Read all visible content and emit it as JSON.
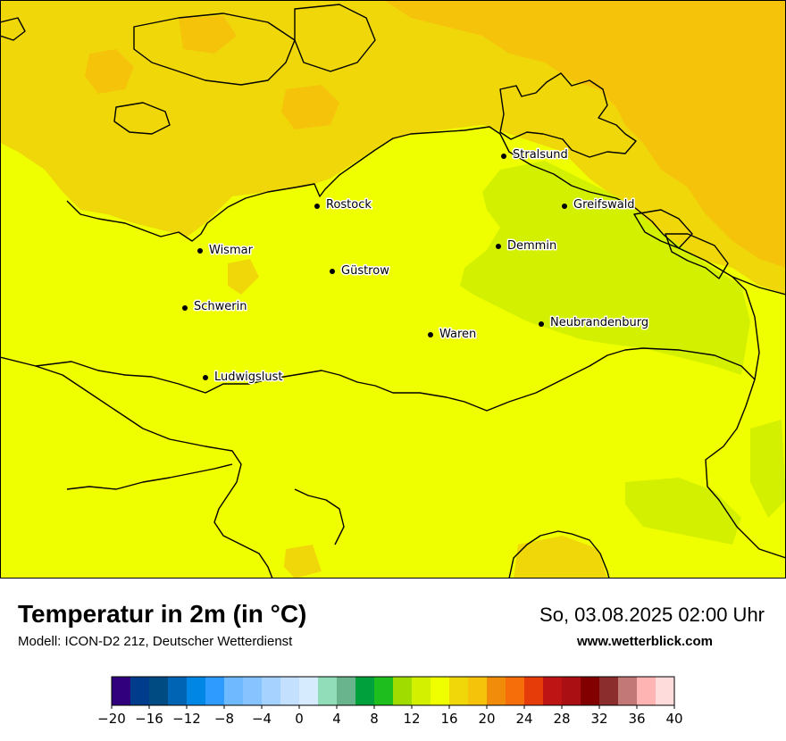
{
  "map": {
    "cities": [
      {
        "name": "Stralsund",
        "id": "stralsund"
      },
      {
        "name": "Rostock",
        "id": "rostock"
      },
      {
        "name": "Greifswald",
        "id": "greifswald"
      },
      {
        "name": "Wismar",
        "id": "wismar"
      },
      {
        "name": "Demmin",
        "id": "demmin"
      },
      {
        "name": "Güstrow",
        "id": "guestrow"
      },
      {
        "name": "Schwerin",
        "id": "schwerin"
      },
      {
        "name": "Neubrandenburg",
        "id": "neubrandenburg"
      },
      {
        "name": "Waren",
        "id": "waren"
      },
      {
        "name": "Ludwigslust",
        "id": "ludwigslust"
      }
    ],
    "field_colors": {
      "sea_warm": "#f5c30a",
      "sea": "#f0d70a",
      "land": "#f0ff00",
      "land_cool": "#d2f000"
    }
  },
  "header": {
    "title": "Temperatur in 2m (in °C)",
    "model": "Modell: ICON-D2 21z, Deutscher Wetterdienst",
    "datetime": "So, 03.08.2025 02:00 Uhr",
    "site": "www.wetterblick.com"
  },
  "legend": {
    "min": -20,
    "max": 40,
    "step": 2,
    "tick_labels": [
      "−20",
      "−16",
      "−12",
      "−8",
      "−4",
      "0",
      "4",
      "8",
      "12",
      "16",
      "20",
      "24",
      "28",
      "32",
      "36",
      "40"
    ],
    "colors": [
      "#30007d",
      "#003c8c",
      "#004b82",
      "#0064b4",
      "#0087e6",
      "#2d9bff",
      "#6eb9ff",
      "#87c3ff",
      "#a5d2ff",
      "#c3e1ff",
      "#d7ebff",
      "#91dcb9",
      "#69b48c",
      "#00a03c",
      "#1ebe1e",
      "#a0dc00",
      "#d2f000",
      "#f0ff00",
      "#f0d70a",
      "#f5c30a",
      "#f08c0a",
      "#f56e0a",
      "#e63c0a",
      "#be1414",
      "#aa0f14",
      "#820000",
      "#8c2d2d",
      "#c37878",
      "#ffb4b4",
      "#ffdcdc"
    ]
  }
}
